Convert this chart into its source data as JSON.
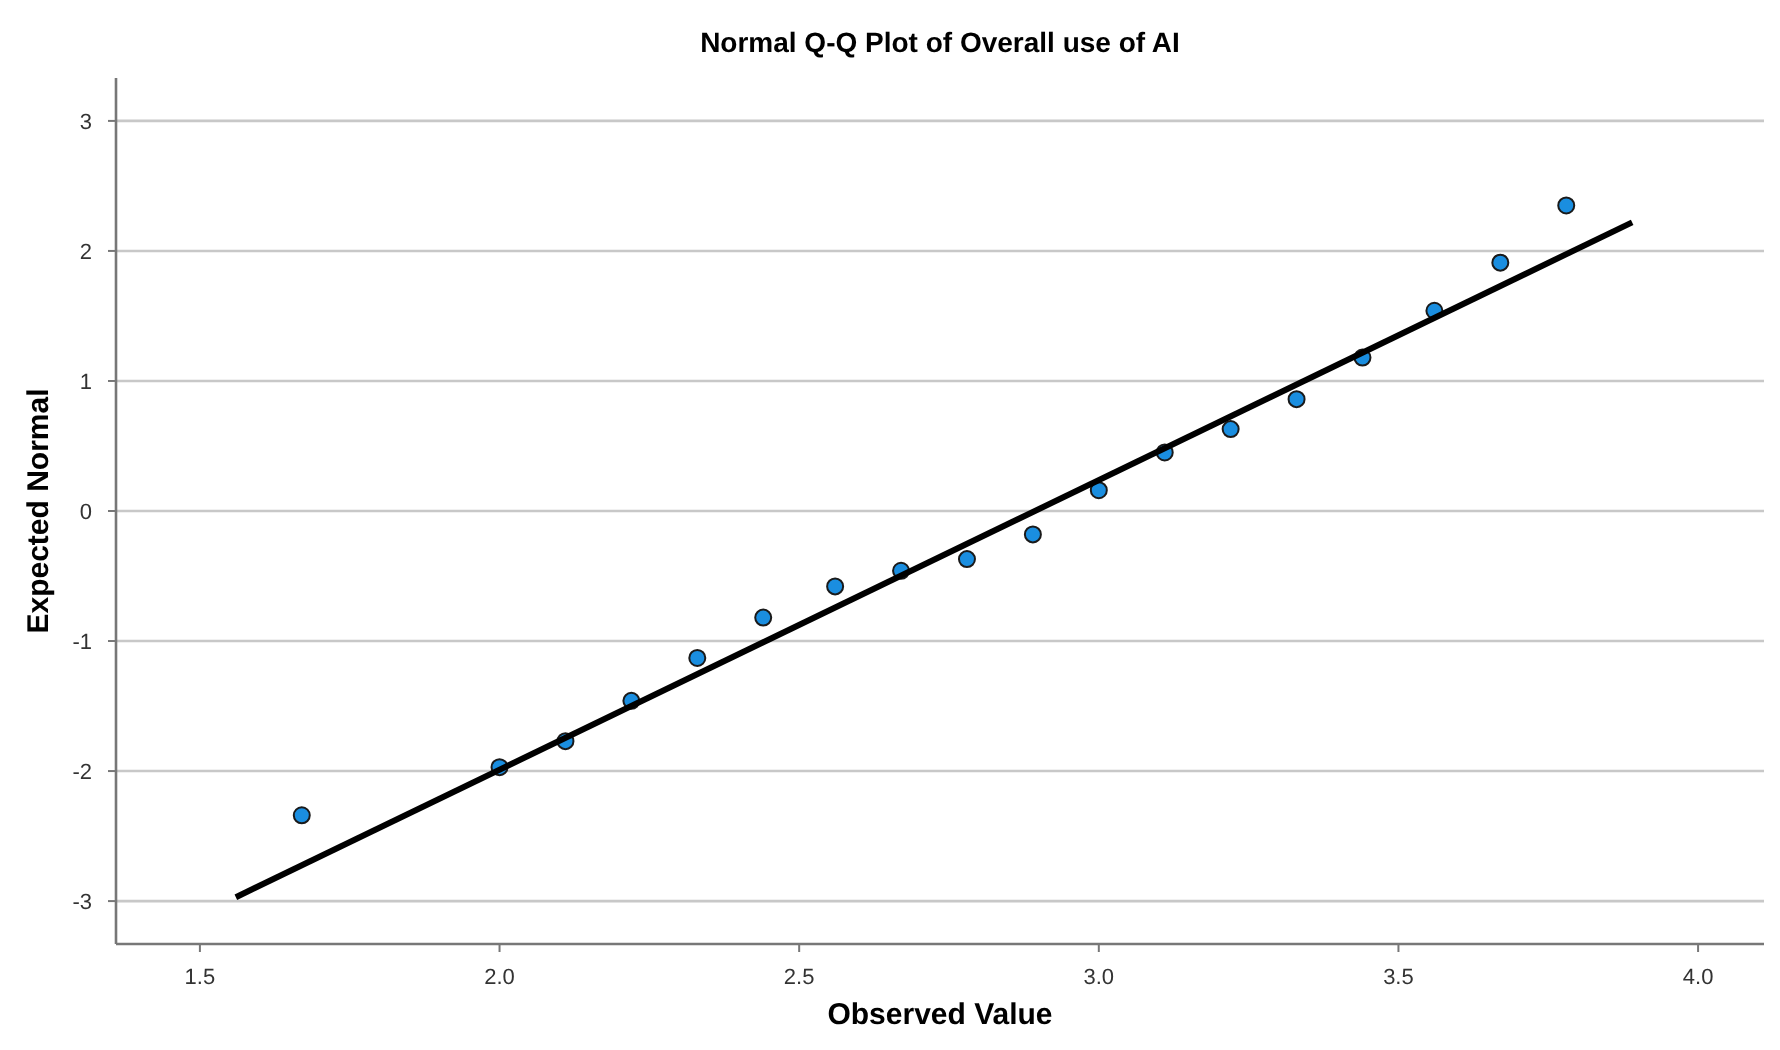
{
  "chart_data": {
    "type": "scatter",
    "title": "Normal Q-Q Plot of Overall use of AI",
    "xlabel": "Observed Value",
    "ylabel": "Expected Normal",
    "xlim": [
      1.36,
      4.11
    ],
    "ylim": [
      -3.33,
      3.33
    ],
    "xticks": [
      {
        "value": 1.5,
        "label": "1.5"
      },
      {
        "value": 2,
        "label": "2.0"
      },
      {
        "value": 2.5,
        "label": "2.5"
      },
      {
        "value": 3,
        "label": "3.0"
      },
      {
        "value": 3.5,
        "label": "3.5"
      },
      {
        "value": 4,
        "label": "4.0"
      }
    ],
    "yticks": [
      -3,
      -2,
      -1,
      0,
      1,
      2,
      3
    ],
    "grid": "y",
    "series": [
      {
        "color": "#1a8ee0",
        "marker": "circle",
        "x": [
          1.67,
          2.0,
          2.11,
          2.22,
          2.33,
          2.44,
          2.56,
          2.67,
          2.78,
          2.89,
          3.0,
          3.11,
          3.22,
          3.33,
          3.44,
          3.56,
          3.67,
          3.78
        ],
        "values": [
          -2.34,
          -1.97,
          -1.77,
          -1.46,
          -1.13,
          -0.82,
          -0.58,
          -0.46,
          -0.37,
          -0.18,
          0.16,
          0.45,
          0.63,
          0.86,
          1.18,
          1.54,
          1.91,
          2.35
        ]
      },
      {
        "type": "line",
        "color": "#000000",
        "marker": "none",
        "line_style": "solid",
        "x": [
          1.56,
          3.89
        ],
        "values": [
          -2.97,
          2.22
        ]
      }
    ]
  }
}
